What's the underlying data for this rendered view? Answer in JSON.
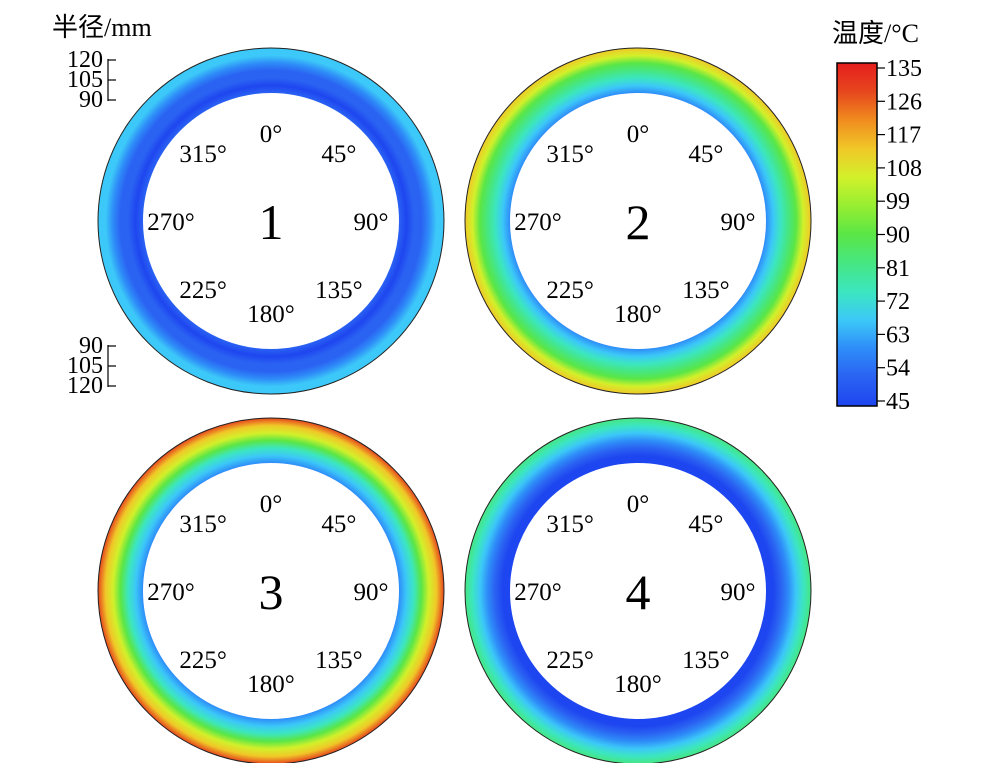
{
  "radius_label": "半径/mm",
  "radius_ticks": [
    "120",
    "105",
    "90"
  ],
  "colorbar": {
    "title": "温度/°C",
    "ticks": [
      "135",
      "126",
      "117",
      "108",
      "99",
      "90",
      "81",
      "72",
      "63",
      "54",
      "45"
    ],
    "min": 45,
    "max": 135
  },
  "colors": [
    "#1e46f0",
    "#2a62f2",
    "#2e8cf8",
    "#3cc8f8",
    "#3ce6c0",
    "#46e682",
    "#5ae646",
    "#96ee32",
    "#d2f02a",
    "#f0c828",
    "#f08c1e",
    "#e6461e",
    "#e61e1e"
  ],
  "chart_data": {
    "type": "heatmap",
    "title": "",
    "radius_unit": "mm",
    "radius_range": [
      90,
      120
    ],
    "angle_labels": [
      "0°",
      "45°",
      "90°",
      "135°",
      "180°",
      "225°",
      "270°",
      "315°"
    ],
    "value_range": [
      45,
      135
    ],
    "series": [
      {
        "name": "1",
        "radius_profile": [
          {
            "r": 90,
            "t": 52
          },
          {
            "r": 95,
            "t": 47
          },
          {
            "r": 100,
            "t": 49
          },
          {
            "r": 105,
            "t": 53
          },
          {
            "r": 110,
            "t": 60
          },
          {
            "r": 115,
            "t": 66
          },
          {
            "r": 120,
            "t": 71
          }
        ]
      },
      {
        "name": "2",
        "radius_profile": [
          {
            "r": 90,
            "t": 63
          },
          {
            "r": 95,
            "t": 67
          },
          {
            "r": 100,
            "t": 74
          },
          {
            "r": 105,
            "t": 82
          },
          {
            "r": 110,
            "t": 92
          },
          {
            "r": 115,
            "t": 102
          },
          {
            "r": 120,
            "t": 114
          }
        ]
      },
      {
        "name": "3",
        "radius_profile": [
          {
            "r": 90,
            "t": 60
          },
          {
            "r": 95,
            "t": 67
          },
          {
            "r": 100,
            "t": 78
          },
          {
            "r": 105,
            "t": 92
          },
          {
            "r": 110,
            "t": 104
          },
          {
            "r": 115,
            "t": 114
          },
          {
            "r": 120,
            "t": 126
          }
        ]
      },
      {
        "name": "4",
        "radius_profile": [
          {
            "r": 90,
            "t": 47
          },
          {
            "r": 95,
            "t": 46
          },
          {
            "r": 100,
            "t": 49
          },
          {
            "r": 105,
            "t": 57
          },
          {
            "r": 110,
            "t": 66
          },
          {
            "r": 115,
            "t": 75
          },
          {
            "r": 120,
            "t": 84
          }
        ]
      }
    ]
  }
}
